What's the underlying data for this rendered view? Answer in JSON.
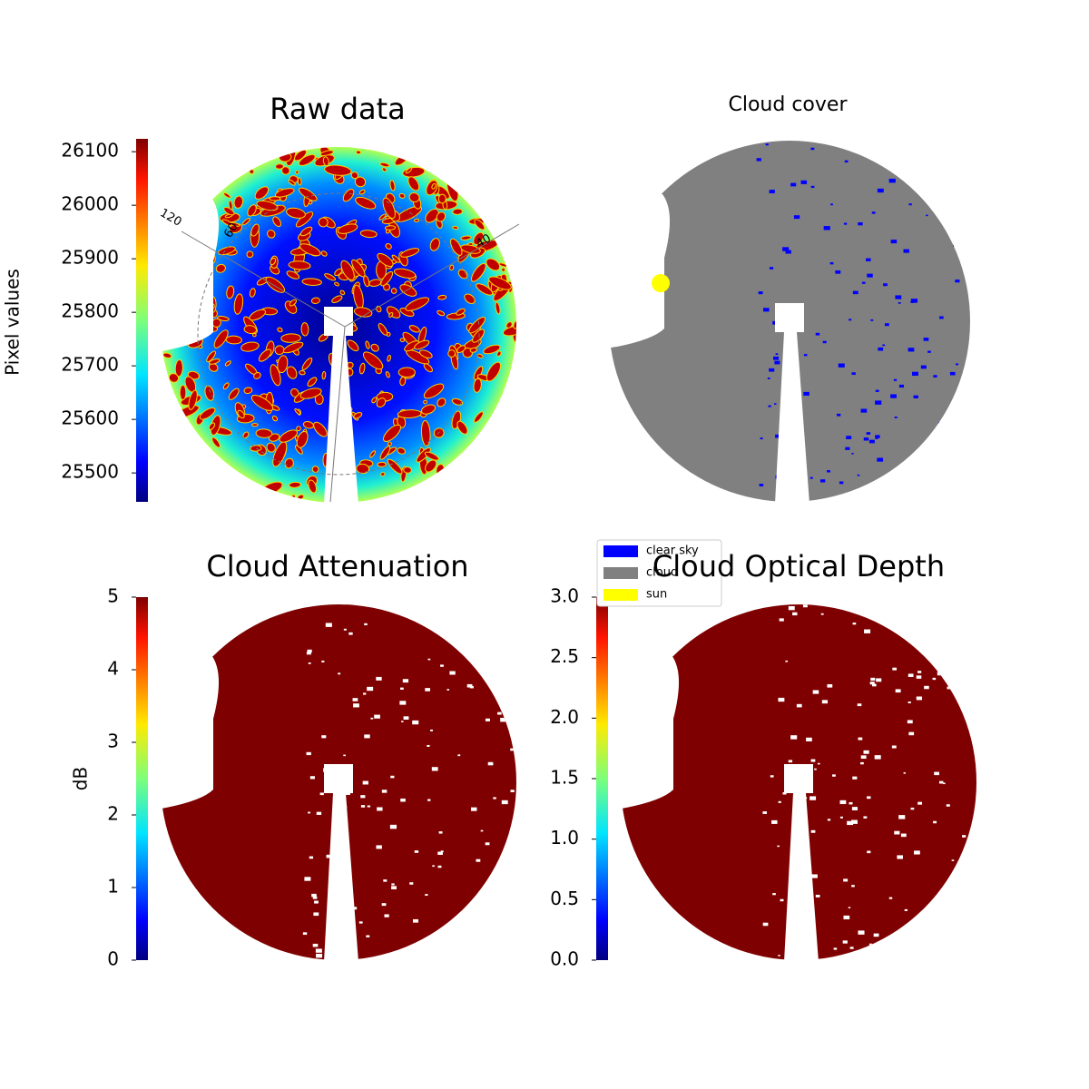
{
  "chart_data": [
    {
      "type": "image",
      "title": "Raw data",
      "colormap": "jet",
      "colorbar_label": "Pixel values",
      "clim": [
        25446,
        26124
      ],
      "cticks": [
        25500,
        25600,
        25700,
        25800,
        25900,
        26000,
        26100
      ],
      "annotations": [
        "120",
        "60",
        "40"
      ]
    },
    {
      "type": "image",
      "title": "Cloud cover",
      "legend_items": [
        {
          "name": "clear sky",
          "color": "#0000ff"
        },
        {
          "name": "cloud",
          "color": "#808080"
        },
        {
          "name": "sun",
          "color": "#ffff00"
        }
      ]
    },
    {
      "type": "image",
      "title": "Cloud Attenuation",
      "colormap": "jet",
      "colorbar_label": "dB",
      "clim": [
        0,
        5
      ],
      "cticks": [
        0,
        1,
        2,
        3,
        4,
        5
      ]
    },
    {
      "type": "image",
      "title": "Cloud Optical Depth",
      "colormap": "jet",
      "clim": [
        0,
        3
      ],
      "cticks": [
        {
          "value": 0,
          "label": "0.0"
        },
        {
          "value": 0.5,
          "label": "0.5"
        },
        {
          "value": 1,
          "label": "1.0"
        },
        {
          "value": 1.5,
          "label": "1.5"
        },
        {
          "value": 2,
          "label": "2.0"
        },
        {
          "value": 2.5,
          "label": "2.5"
        },
        {
          "value": 3,
          "label": "3.0"
        }
      ]
    }
  ]
}
